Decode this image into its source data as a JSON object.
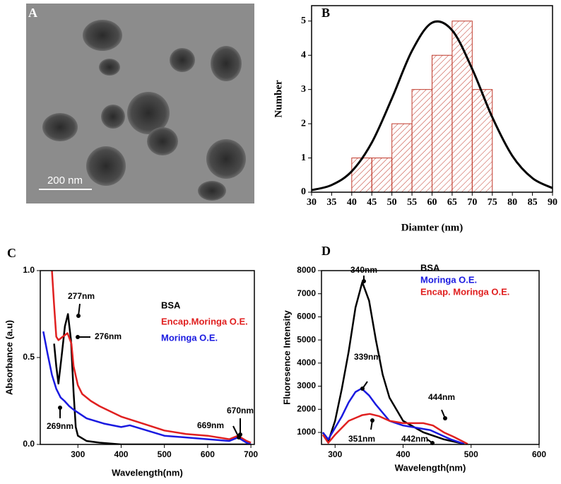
{
  "chart_data": [
    {
      "type": "image",
      "panel_label": "A",
      "scale_bar_label": "200 nm"
    },
    {
      "type": "histogram",
      "panel_label": "B",
      "x_label": "Diamter (nm)",
      "y_label": "Number",
      "bins": [
        40,
        45,
        50,
        55,
        60,
        65,
        70,
        75
      ],
      "counts": [
        1,
        1,
        2,
        3,
        4,
        5,
        3
      ],
      "color": "#c0392b",
      "curve": {
        "x": [
          30,
          35,
          40,
          45,
          50,
          55,
          60,
          65,
          70,
          75,
          80,
          85,
          90
        ],
        "values": [
          0.06,
          0.21,
          0.61,
          1.45,
          2.74,
          4.13,
          4.95,
          4.73,
          3.6,
          2.19,
          1.06,
          0.41,
          0.12
        ],
        "color": "#000000"
      },
      "xlim": [
        30,
        90
      ],
      "xticks": [
        30,
        35,
        40,
        45,
        50,
        55,
        60,
        65,
        70,
        75,
        80,
        85,
        90
      ],
      "ylim": [
        0,
        5.45
      ],
      "yticks": [
        0,
        1,
        2,
        3,
        4,
        5
      ]
    },
    {
      "type": "line",
      "panel_label": "C",
      "x_label": "Wavelength(nm)",
      "y_label": "Absorbance (a.u)",
      "series": [
        {
          "name": "BSA",
          "color": "#000000",
          "x": [
            245,
            250,
            255,
            262,
            270,
            277,
            284,
            290,
            295,
            300,
            320,
            350,
            400,
            500,
            600,
            700
          ],
          "values": [
            0.58,
            0.45,
            0.35,
            0.5,
            0.68,
            0.75,
            0.6,
            0.3,
            0.1,
            0.05,
            0.02,
            0.01,
            0.0,
            0.0,
            0.0,
            0.0
          ]
        },
        {
          "name": "Encap.Moringa O.E.",
          "color": "#e02020",
          "x": [
            240,
            245,
            250,
            255,
            265,
            276,
            285,
            290,
            300,
            310,
            330,
            350,
            400,
            450,
            500,
            550,
            600,
            650,
            670,
            690,
            700
          ],
          "values": [
            1.0,
            0.8,
            0.62,
            0.6,
            0.62,
            0.64,
            0.58,
            0.45,
            0.34,
            0.29,
            0.25,
            0.22,
            0.16,
            0.12,
            0.08,
            0.06,
            0.05,
            0.03,
            0.05,
            0.02,
            0.01
          ]
        },
        {
          "name": "Moringa O.E.",
          "color": "#1a1ae0",
          "x": [
            220,
            230,
            240,
            250,
            260,
            269,
            280,
            290,
            320,
            360,
            400,
            420,
            460,
            500,
            550,
            600,
            650,
            670,
            690,
            700
          ],
          "values": [
            0.65,
            0.52,
            0.4,
            0.32,
            0.27,
            0.25,
            0.22,
            0.2,
            0.15,
            0.12,
            0.1,
            0.11,
            0.08,
            0.05,
            0.04,
            0.03,
            0.02,
            0.04,
            0.01,
            0.0
          ]
        }
      ],
      "annotations": [
        "277nm",
        "276nm",
        "269nm",
        "669nm",
        "670nm"
      ],
      "xlim": [
        213,
        708
      ],
      "xticks": [
        300,
        400,
        500,
        600,
        700
      ],
      "ylim": [
        0,
        1
      ],
      "yticks": [
        {
          "value": 0,
          "label": "0.0"
        },
        {
          "value": 0.5,
          "label": "0.5"
        },
        {
          "value": 1,
          "label": "1.0"
        }
      ]
    },
    {
      "type": "line",
      "panel_label": "D",
      "x_label": "Wavelength(nm)",
      "y_label": "Fluoresence Intensity",
      "series": [
        {
          "name": "BSA",
          "color": "#000000",
          "x": [
            282,
            290,
            300,
            310,
            320,
            330,
            340,
            350,
            360,
            370,
            380,
            400,
            430,
            460,
            490
          ],
          "values": [
            1000,
            600,
            1500,
            2900,
            4500,
            6400,
            7500,
            6700,
            5000,
            3500,
            2500,
            1500,
            1000,
            700,
            500
          ]
        },
        {
          "name": "Moringa O.E.",
          "color": "#1a1ae0",
          "x": [
            282,
            290,
            300,
            310,
            320,
            330,
            339,
            350,
            360,
            380,
            400,
            440,
            470,
            490
          ],
          "values": [
            1000,
            700,
            1200,
            1700,
            2300,
            2750,
            2900,
            2600,
            2200,
            1500,
            1300,
            1100,
            700,
            500
          ]
        },
        {
          "name": "Encap. Moringa O.E.",
          "color": "#e02020",
          "x": [
            282,
            290,
            300,
            320,
            340,
            351,
            365,
            380,
            400,
            430,
            444,
            460,
            475,
            495
          ],
          "values": [
            900,
            550,
            900,
            1500,
            1750,
            1800,
            1700,
            1500,
            1400,
            1400,
            1300,
            1000,
            800,
            500
          ]
        }
      ],
      "annotations": [
        "340nm",
        "339nm",
        "444nm",
        "351nm",
        "442nm"
      ],
      "xlim": [
        280,
        600
      ],
      "xticks": [
        300,
        400,
        500,
        600
      ],
      "ylim": [
        480,
        8000
      ],
      "yticks": [
        1000,
        2000,
        3000,
        4000,
        5000,
        6000,
        7000,
        8000
      ]
    }
  ]
}
